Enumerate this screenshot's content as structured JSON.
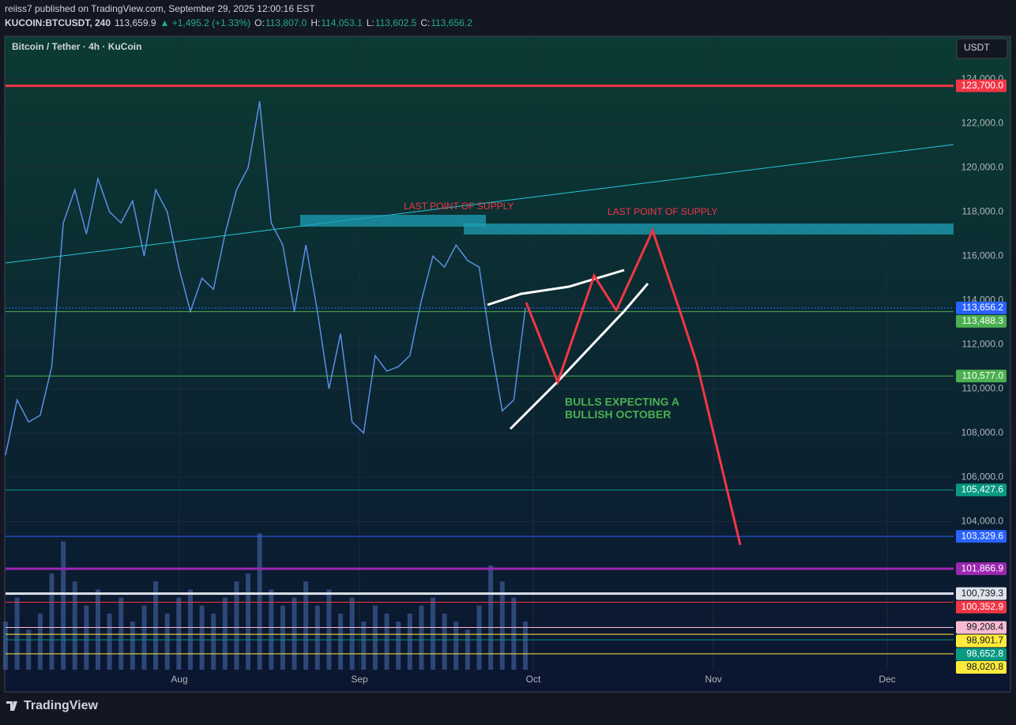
{
  "header": {
    "publisher": "reiiss7 published on TradingView.com, September 29, 2025 12:00:16 EST",
    "ticker_parts": [
      {
        "text": "KUCOIN:BTCUSDT, 240",
        "color": "#d1d4dc"
      },
      {
        "text": "113,659.9",
        "color": "#d1d4dc"
      },
      {
        "text": "▲ +1,495.2 (+1.33%)",
        "color": "#22ab94"
      },
      {
        "text": "O:",
        "color": "#d1d4dc"
      },
      {
        "text": "113,807.0",
        "color": "#22ab94"
      },
      {
        "text": "H:",
        "color": "#d1d4dc"
      },
      {
        "text": "114,053.1",
        "color": "#22ab94"
      },
      {
        "text": "L:",
        "color": "#d1d4dc"
      },
      {
        "text": "113,602.5",
        "color": "#22ab94"
      },
      {
        "text": "C:",
        "color": "#d1d4dc"
      },
      {
        "text": "113,656.2",
        "color": "#22ab94"
      }
    ]
  },
  "footer": {
    "logo": "TradingView"
  },
  "chart_data": {
    "type": "line",
    "title": "Bitcoin / Tether · 4h · KuCoin",
    "currency": "USDT",
    "xtick_labels": [
      "Aug",
      "Sep",
      "Oct",
      "Nov",
      "Dec"
    ],
    "series": [
      {
        "name": "BTCUSDT",
        "color": "#5b8ee6",
        "values": [
          107000,
          109500,
          108500,
          108800,
          111000,
          117500,
          119000,
          117000,
          119500,
          118000,
          117500,
          118500,
          116000,
          119000,
          118000,
          115500,
          113500,
          115000,
          114500,
          117000,
          119000,
          120000,
          123000,
          117500,
          116500,
          113500,
          116500,
          113500,
          110000,
          112500,
          108500,
          108000,
          111500,
          110800,
          111000,
          111500,
          114000,
          116000,
          115500,
          116500,
          115800,
          115500,
          112000,
          109000,
          109500,
          113656.2
        ]
      },
      {
        "name": "Volume",
        "color": "#4a6fb0",
        "axis": "y2",
        "values": [
          30,
          45,
          25,
          35,
          60,
          80,
          55,
          40,
          50,
          35,
          45,
          30,
          40,
          55,
          35,
          45,
          50,
          40,
          35,
          45,
          55,
          60,
          85,
          50,
          40,
          45,
          55,
          40,
          50,
          35,
          45,
          30,
          40,
          35,
          30,
          35,
          40,
          45,
          35,
          30,
          25,
          40,
          65,
          55,
          45,
          30
        ]
      }
    ],
    "ylim": [
      97300,
      125900
    ],
    "y2lim": [
      0,
      100
    ],
    "yticks": [
      {
        "value": 104000,
        "label": "104,000.0"
      },
      {
        "value": 106000,
        "label": "106,000.0"
      },
      {
        "value": 108000,
        "label": "108,000.0"
      },
      {
        "value": 110000,
        "label": "110,000.0"
      },
      {
        "value": 112000,
        "label": "112,000.0"
      },
      {
        "value": 114000,
        "label": "114,000.0"
      },
      {
        "value": 116000,
        "label": "116,000.0"
      },
      {
        "value": 118000,
        "label": "118,000.0"
      },
      {
        "value": 120000,
        "label": "120,000.0"
      },
      {
        "value": 122000,
        "label": "122,000.0"
      },
      {
        "value": 124000,
        "label": "124,000.0"
      }
    ],
    "grid": true,
    "levels": [
      {
        "value": 123700,
        "label": "123,700.0",
        "color": "#f23645"
      },
      {
        "value": 113656.2,
        "label": "113,656.2",
        "color": "#2962ff"
      },
      {
        "value": 113488.3,
        "label": "113,488.3",
        "color": "#4caf50"
      },
      {
        "value": 110577,
        "label": "110,577.0",
        "color": "#4caf50"
      },
      {
        "value": 105427.6,
        "label": "105,427.6",
        "color": "#089981"
      },
      {
        "value": 103329.6,
        "label": "103,329.6",
        "color": "#2962ff"
      },
      {
        "value": 101866.9,
        "label": "101,866.9",
        "color": "#9c27b0"
      },
      {
        "value": 100739.3,
        "label": "100,739.3",
        "color": "#e0e3eb"
      },
      {
        "value": 100352.9,
        "label": "100,352.9",
        "color": "#f23645"
      },
      {
        "value": 99208.4,
        "label": "99,208.4",
        "color": "#f8bbd0"
      },
      {
        "value": 98901.7,
        "label": "98,901.7",
        "color": "#ffeb3b"
      },
      {
        "value": 98652.8,
        "label": "98,652.8",
        "color": "#089981"
      },
      {
        "value": 98020.8,
        "label": "98,020.8",
        "color": "#ffeb3b"
      }
    ],
    "annotations": [
      "LAST POINT OF SUPPLY",
      "LAST POINT OF SUPPLY",
      "BULLS EXPECTING A",
      "BULLISH OCTOBER"
    ]
  }
}
